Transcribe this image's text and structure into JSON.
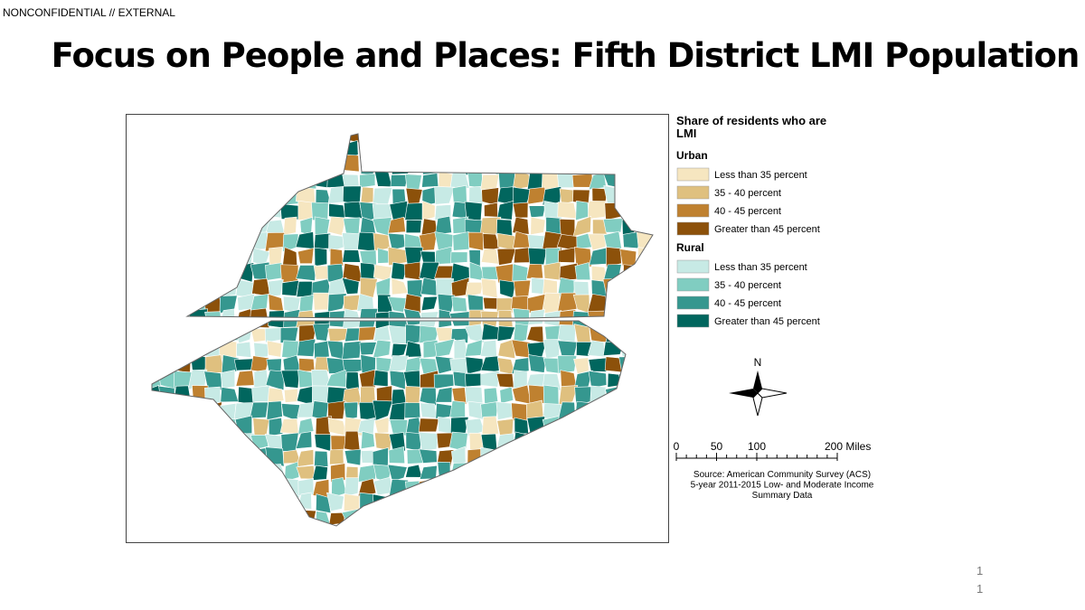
{
  "header": {
    "classification": "NONCONFIDENTIAL // EXTERNAL",
    "title": "Focus on People and Places: Fifth District LMI Population"
  },
  "map": {
    "legend": {
      "title": "Share of residents who are LMI",
      "groups": [
        {
          "label": "Urban",
          "items": [
            {
              "label": "Less than 35 percent",
              "color": "#f6e6c0"
            },
            {
              "label": "35 - 40 percent",
              "color": "#dfc07f"
            },
            {
              "label": "40 - 45 percent",
              "color": "#bf8130"
            },
            {
              "label": "Greater than 45 percent",
              "color": "#8c510a"
            }
          ]
        },
        {
          "label": "Rural",
          "items": [
            {
              "label": "Less than 35 percent",
              "color": "#c7eae5"
            },
            {
              "label": "35 - 40 percent",
              "color": "#80cdc1"
            },
            {
              "label": "40 - 45 percent",
              "color": "#35978f"
            },
            {
              "label": "Greater than 45 percent",
              "color": "#01665e"
            }
          ]
        }
      ]
    },
    "north_label": "N",
    "scale_ticks": [
      0,
      50,
      100,
      {
        "value": 200,
        "label": "200 Miles"
      }
    ],
    "source": [
      "Source: American Community Survey (ACS)",
      "5-year 2011-2015 Low- and Moderate Income",
      "Summary Data"
    ]
  },
  "page_number": "11"
}
